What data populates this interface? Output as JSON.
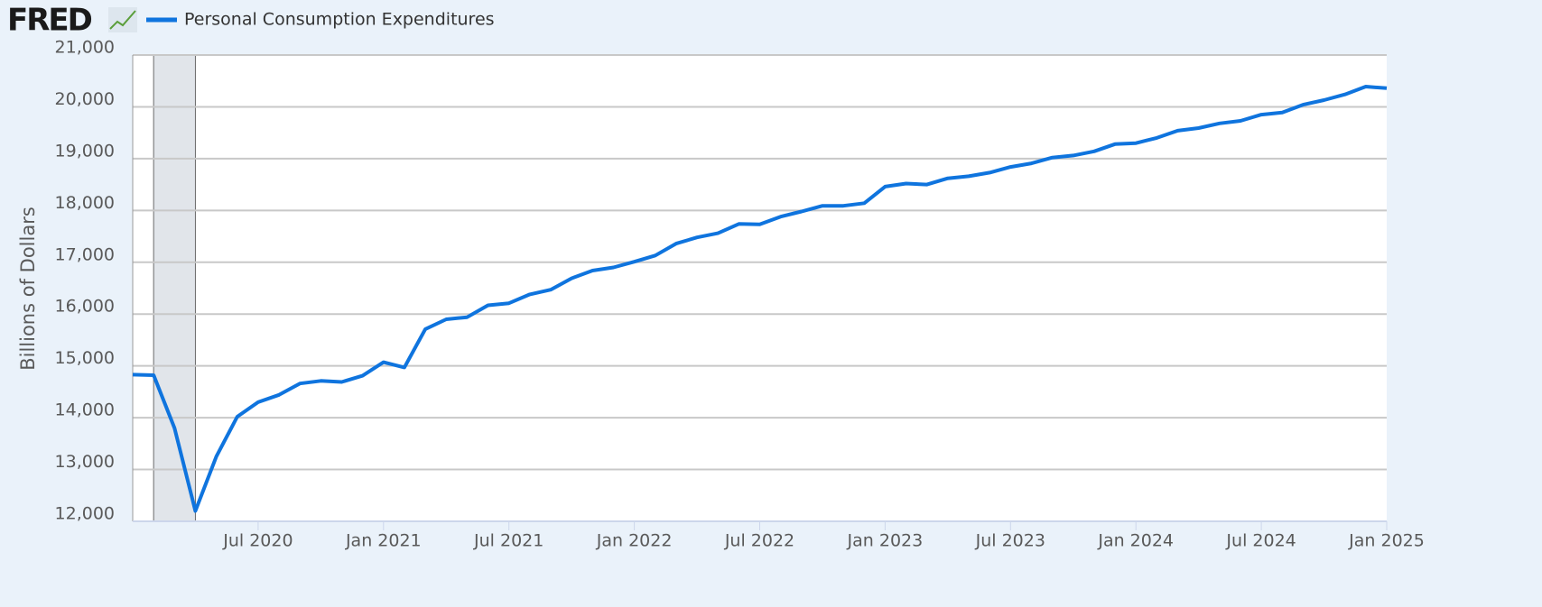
{
  "logo": "FRED",
  "chart_data": {
    "type": "line",
    "y_label": "Billions of Dollars",
    "x": [
      "2020-01",
      "2020-02",
      "2020-03",
      "2020-04",
      "2020-05",
      "2020-06",
      "2020-07",
      "2020-08",
      "2020-09",
      "2020-10",
      "2020-11",
      "2020-12",
      "2021-01",
      "2021-02",
      "2021-03",
      "2021-04",
      "2021-05",
      "2021-06",
      "2021-07",
      "2021-08",
      "2021-09",
      "2021-10",
      "2021-11",
      "2021-12",
      "2022-01",
      "2022-02",
      "2022-03",
      "2022-04",
      "2022-05",
      "2022-06",
      "2022-07",
      "2022-08",
      "2022-09",
      "2022-10",
      "2022-11",
      "2022-12",
      "2023-01",
      "2023-02",
      "2023-03",
      "2023-04",
      "2023-05",
      "2023-06",
      "2023-07",
      "2023-08",
      "2023-09",
      "2023-10",
      "2023-11",
      "2023-12",
      "2024-01",
      "2024-02",
      "2024-03",
      "2024-04",
      "2024-05",
      "2024-06",
      "2024-07",
      "2024-08",
      "2024-09",
      "2024-10",
      "2024-11",
      "2024-12",
      "2025-01"
    ],
    "series": [
      {
        "name": "Personal Consumption Expenditures",
        "color": "#0f74de",
        "values": [
          14830,
          14820,
          13800,
          12200,
          13250,
          14020,
          14300,
          14440,
          14660,
          14710,
          14690,
          14810,
          15070,
          14970,
          15710,
          15900,
          15940,
          16170,
          16210,
          16380,
          16470,
          16690,
          16840,
          16900,
          17010,
          17130,
          17360,
          17480,
          17560,
          17740,
          17730,
          17880,
          17980,
          18090,
          18090,
          18140,
          18460,
          18520,
          18500,
          18620,
          18660,
          18730,
          18840,
          18910,
          19020,
          19060,
          19140,
          19280,
          19300,
          19400,
          19540,
          19590,
          19680,
          19730,
          19850,
          19890,
          20040,
          20130,
          20240,
          20390,
          20360
        ]
      }
    ],
    "xlim": [
      "2020-01",
      "2025-01"
    ],
    "xticks": [
      {
        "value": "2020-07",
        "label": "Jul 2020"
      },
      {
        "value": "2021-01",
        "label": "Jan 2021"
      },
      {
        "value": "2021-07",
        "label": "Jul 2021"
      },
      {
        "value": "2022-01",
        "label": "Jan 2022"
      },
      {
        "value": "2022-07",
        "label": "Jul 2022"
      },
      {
        "value": "2023-01",
        "label": "Jan 2023"
      },
      {
        "value": "2023-07",
        "label": "Jul 2023"
      },
      {
        "value": "2024-01",
        "label": "Jan 2024"
      },
      {
        "value": "2024-07",
        "label": "Jul 2024"
      },
      {
        "value": "2025-01",
        "label": "Jan 2025"
      }
    ],
    "ylim": [
      12000,
      21000
    ],
    "yticks": [
      {
        "value": 12000,
        "label": "12,000"
      },
      {
        "value": 13000,
        "label": "13,000"
      },
      {
        "value": 14000,
        "label": "14,000"
      },
      {
        "value": 15000,
        "label": "15,000"
      },
      {
        "value": 16000,
        "label": "16,000"
      },
      {
        "value": 17000,
        "label": "17,000"
      },
      {
        "value": 18000,
        "label": "18,000"
      },
      {
        "value": 19000,
        "label": "19,000"
      },
      {
        "value": 20000,
        "label": "20,000"
      },
      {
        "value": 21000,
        "label": "21,000"
      }
    ],
    "grid": true,
    "recession": {
      "start": "2020-02",
      "end": "2020-04"
    }
  }
}
